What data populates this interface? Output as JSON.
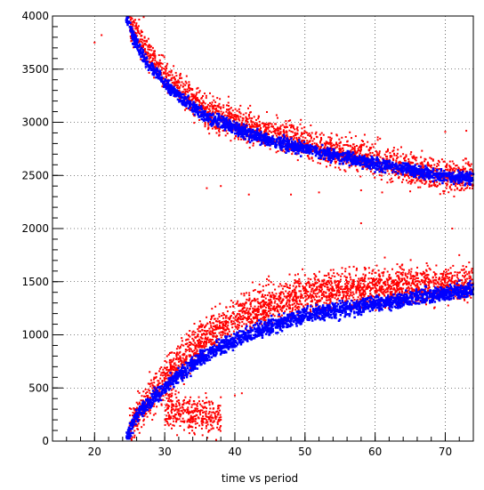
{
  "chart_data": {
    "type": "scatter",
    "xlabel": "time vs period",
    "ylabel": "",
    "xlim": [
      14,
      74
    ],
    "ylim": [
      0,
      4000
    ],
    "x_ticks": [
      20,
      30,
      40,
      50,
      60,
      70
    ],
    "y_ticks": [
      0,
      500,
      1000,
      1500,
      2000,
      2500,
      3000,
      3500,
      4000
    ],
    "grid": "dotted",
    "legend": "none",
    "colors": {
      "red_series": "#ff0000",
      "blue_series": "#0000ff"
    },
    "series": [
      {
        "color": "red",
        "bands": [
          {
            "description_points": [
              [
                25,
                3950
              ],
              [
                27,
                3700
              ],
              [
                30,
                3450
              ],
              [
                33,
                3250
              ],
              [
                36,
                3100
              ],
              [
                40,
                3000
              ],
              [
                45,
                2900
              ],
              [
                50,
                2800
              ],
              [
                55,
                2720
              ],
              [
                60,
                2650
              ],
              [
                65,
                2570
              ],
              [
                70,
                2500
              ],
              [
                74,
                2480
              ]
            ]
          },
          {
            "description_points": [
              [
                25,
                150
              ],
              [
                28,
                400
              ],
              [
                30,
                600
              ],
              [
                33,
                800
              ],
              [
                36,
                1000
              ],
              [
                40,
                1150
              ],
              [
                45,
                1300
              ],
              [
                50,
                1380
              ],
              [
                55,
                1430
              ],
              [
                60,
                1450
              ],
              [
                65,
                1460
              ],
              [
                70,
                1470
              ],
              [
                74,
                1480
              ]
            ]
          },
          {
            "description_points": [
              [
                30,
                300
              ],
              [
                32,
                280
              ],
              [
                34,
                260
              ],
              [
                36,
                240
              ],
              [
                38,
                220
              ]
            ]
          }
        ],
        "outliers": [
          [
            20,
            3750
          ],
          [
            21,
            3820
          ],
          [
            36,
            2380
          ],
          [
            38,
            2400
          ],
          [
            42,
            2320
          ],
          [
            48,
            2320
          ],
          [
            52,
            2340
          ],
          [
            58,
            2360
          ],
          [
            61,
            2340
          ],
          [
            65,
            2350
          ],
          [
            70,
            2910
          ],
          [
            73,
            2920
          ],
          [
            58,
            2050
          ],
          [
            71,
            2000
          ],
          [
            73,
            1640
          ],
          [
            72,
            1750
          ],
          [
            40,
            430
          ],
          [
            41,
            450
          ],
          [
            27,
            3990
          ]
        ]
      },
      {
        "color": "blue",
        "bands": [
          {
            "description_points": [
              [
                24.5,
                4000
              ],
              [
                25.5,
                3800
              ],
              [
                27,
                3600
              ],
              [
                29,
                3450
              ],
              [
                31,
                3300
              ],
              [
                33,
                3200
              ],
              [
                36,
                3050
              ],
              [
                40,
                2950
              ],
              [
                45,
                2830
              ],
              [
                50,
                2750
              ],
              [
                55,
                2680
              ],
              [
                60,
                2610
              ],
              [
                65,
                2550
              ],
              [
                70,
                2490
              ],
              [
                74,
                2470
              ]
            ]
          },
          {
            "description_points": [
              [
                24.5,
                0
              ],
              [
                25,
                100
              ],
              [
                26,
                250
              ],
              [
                28,
                380
              ],
              [
                30,
                500
              ],
              [
                32,
                620
              ],
              [
                34,
                720
              ],
              [
                36,
                820
              ],
              [
                40,
                950
              ],
              [
                45,
                1080
              ],
              [
                50,
                1180
              ],
              [
                55,
                1240
              ],
              [
                60,
                1290
              ],
              [
                65,
                1340
              ],
              [
                70,
                1390
              ],
              [
                74,
                1430
              ]
            ]
          }
        ]
      }
    ]
  }
}
